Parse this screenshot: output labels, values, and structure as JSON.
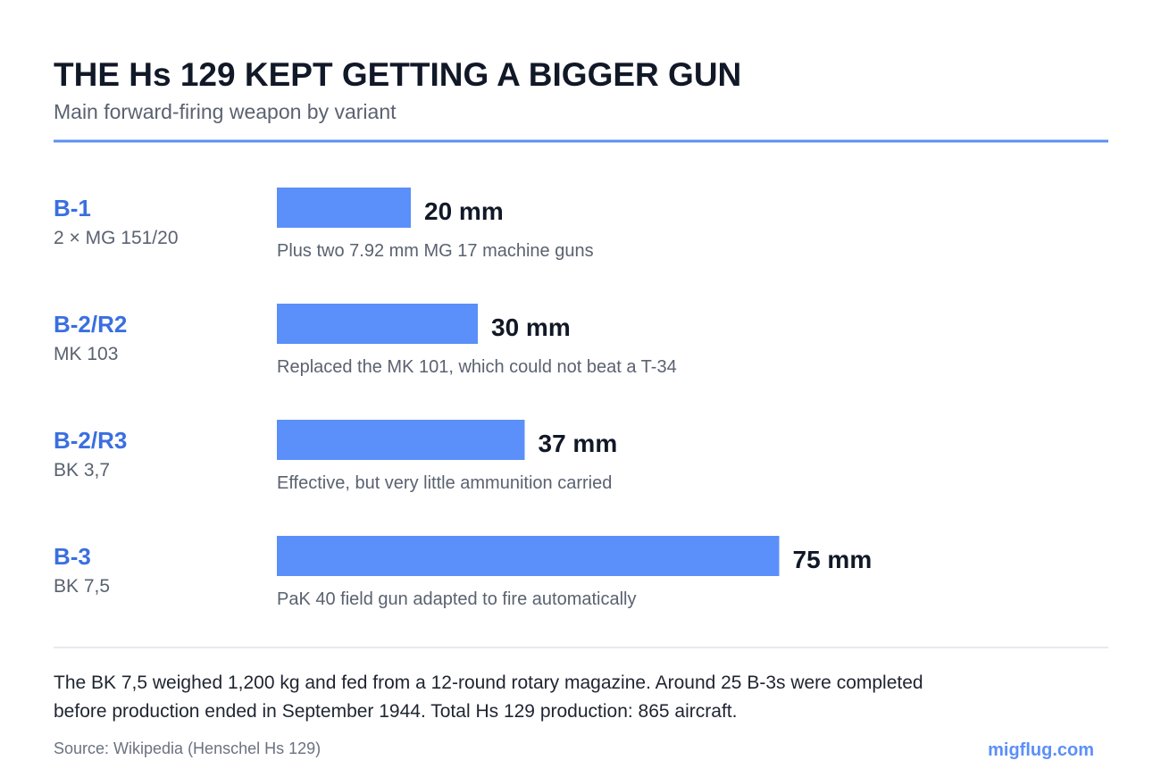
{
  "chart_data": {
    "type": "bar",
    "title": "THE Hs 129 KEPT GETTING A BIGGER GUN",
    "subtitle": "Main forward-firing weapon by variant",
    "categories": [
      "B-1",
      "B-2/R2",
      "B-2/R3",
      "B-3"
    ],
    "sublabels": [
      "2 × MG 151/20",
      "MK 103",
      "BK 3,7",
      "BK 7,5"
    ],
    "values": [
      20,
      30,
      37,
      75
    ],
    "value_labels": [
      "20 mm",
      "30 mm",
      "37 mm",
      "75 mm"
    ],
    "notes": [
      "Plus two 7.92 mm MG 17 machine guns",
      "Replaced the MK 101, which could not beat a T-34",
      "Effective, but very little ammunition carried",
      "PaK 40 field gun adapted to fire automatically"
    ],
    "color": "#5b8ff9",
    "footnote": [
      "The BK 7,5 weighed 1,200 kg and fed from a 12-round rotary magazine. Around 25 B-3s were completed",
      "before production ended in September 1944. Total Hs 129 production: 865 aircraft."
    ],
    "source": "Source: Wikipedia (Henschel Hs 129)",
    "brand": "migflug.com"
  }
}
